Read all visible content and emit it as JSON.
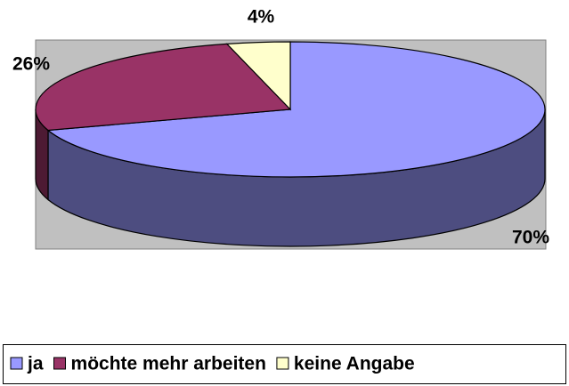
{
  "chart_data": {
    "type": "pie",
    "categories": [
      "ja",
      "möchte mehr arbeiten",
      "keine Angabe"
    ],
    "values": [
      70,
      26,
      4
    ],
    "value_labels": [
      "70%",
      "26%",
      "4%"
    ],
    "colors": [
      "#9999ff",
      "#993366",
      "#ffffcc"
    ],
    "legend": "bottom"
  }
}
